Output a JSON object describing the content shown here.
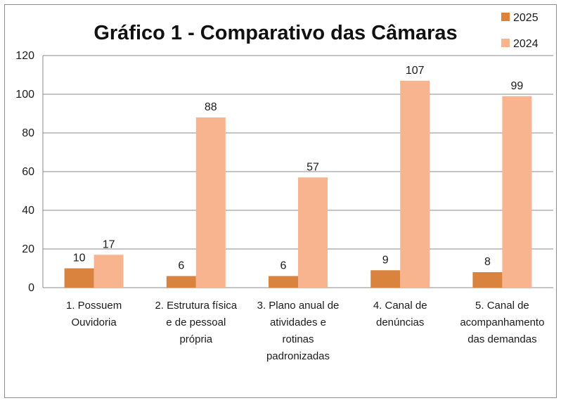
{
  "chart_data": {
    "type": "bar",
    "title": "Gráfico 1 - Comparativo das Câmaras",
    "xlabel": "",
    "ylabel": "",
    "ylim": [
      0,
      120
    ],
    "yticks": [
      0,
      20,
      40,
      60,
      80,
      100,
      120
    ],
    "grid": true,
    "legend_position": "top-right",
    "categories": [
      [
        "1. Possuem",
        "Ouvidoria"
      ],
      [
        "2. Estrutura física",
        "e de pessoal",
        "própria"
      ],
      [
        "3. Plano anual de",
        "atividades e",
        "rotinas",
        "padronizadas"
      ],
      [
        "4. Canal de",
        "denúncias"
      ],
      [
        "5. Canal de",
        "acompanhamento",
        "das demandas"
      ]
    ],
    "series": [
      {
        "name": "2025",
        "color": "#d9833f",
        "values": [
          10,
          6,
          6,
          9,
          8
        ]
      },
      {
        "name": "2024",
        "color": "#f7b48e",
        "values": [
          17,
          88,
          57,
          107,
          99
        ]
      }
    ]
  }
}
